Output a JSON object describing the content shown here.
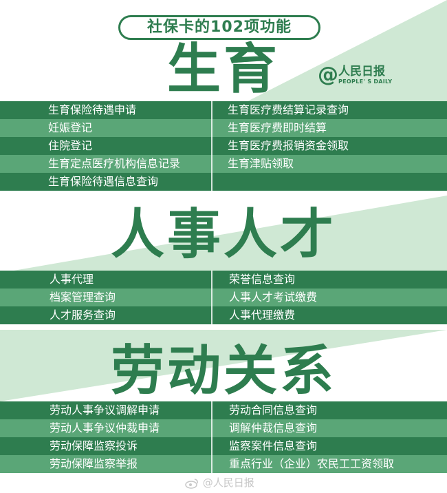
{
  "header": {
    "pill_text": "社保卡的102项功能"
  },
  "logo": {
    "at": "@",
    "name": "人民日报",
    "sub": "PEOPLE' S DAILY"
  },
  "sections": [
    {
      "title": "生育",
      "rows": [
        {
          "left": "生育保险待遇申请",
          "right": "生育医疗费结算记录查询"
        },
        {
          "left": "妊娠登记",
          "right": "生育医疗费即时结算"
        },
        {
          "left": "住院登记",
          "right": "生育医疗费报销资金领取"
        },
        {
          "left": "生育定点医疗机构信息记录",
          "right": "生育津贴领取"
        },
        {
          "left": "生育保险待遇信息查询",
          "right": ""
        }
      ]
    },
    {
      "title": "人事人才",
      "rows": [
        {
          "left": "人事代理",
          "right": "荣誉信息查询"
        },
        {
          "left": "档案管理查询",
          "right": "人事人才考试缴费"
        },
        {
          "left": "人才服务查询",
          "right": "人事代理缴费"
        }
      ]
    },
    {
      "title": "劳动关系",
      "rows": [
        {
          "left": "劳动人事争议调解申请",
          "right": "劳动合同信息查询"
        },
        {
          "left": "劳动人事争议仲裁申请",
          "right": "调解仲裁信息查询"
        },
        {
          "left": "劳动保障监察投诉",
          "right": "监察案件信息查询"
        },
        {
          "left": "劳动保障监察举报",
          "right": "重点行业（企业）农民工工资领取"
        }
      ]
    }
  ],
  "watermark": {
    "text": "@人民日报"
  },
  "colors": {
    "dark_green": "#2e7d4f",
    "light_green": "#5aa677",
    "pale_green": "#cfe8d4"
  }
}
